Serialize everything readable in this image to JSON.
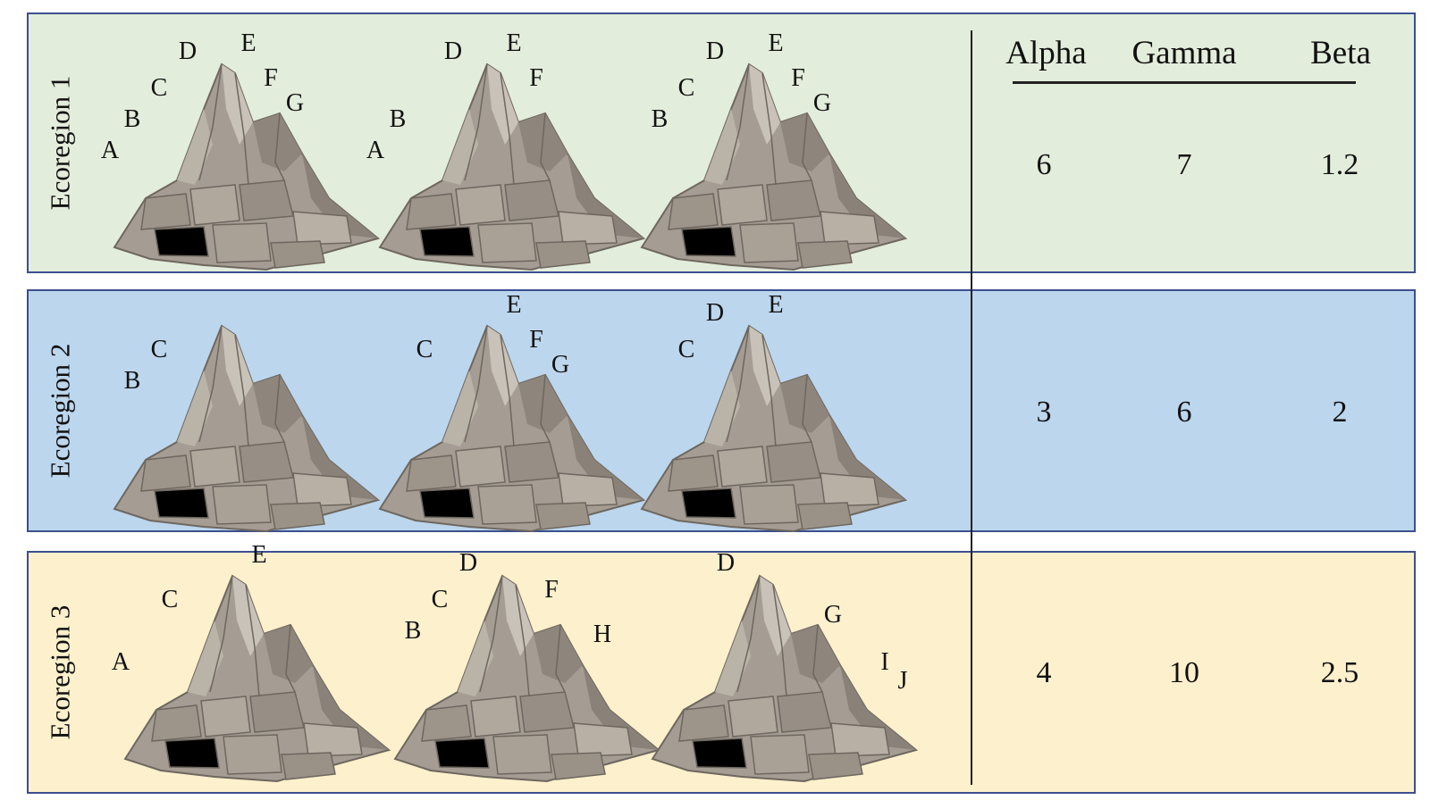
{
  "columns": {
    "alpha": "Alpha",
    "gamma": "Gamma",
    "beta": "Beta"
  },
  "colors": {
    "panel_1": "#e3eddb",
    "panel_2": "#bcd6ee",
    "panel_3": "#fdf0cc",
    "border": "#3b4f8f",
    "rock_dark": "#7b746b",
    "rock": "#a59d93",
    "rock_light": "#c9c2b8"
  },
  "ecoregions": [
    {
      "label": "Ecoregion 1",
      "alpha": "6",
      "gamma": "7",
      "beta": "1.2",
      "mountains": [
        [
          "A",
          "B",
          "C",
          "D",
          "E",
          "F",
          "G"
        ],
        [
          "A",
          "B",
          "D",
          "E",
          "F"
        ],
        [
          "B",
          "C",
          "D",
          "E",
          "F",
          "G"
        ]
      ]
    },
    {
      "label": "Ecoregion 2",
      "alpha": "3",
      "gamma": "6",
      "beta": "2",
      "mountains": [
        [
          "B",
          "C"
        ],
        [
          "C",
          "E",
          "F",
          "G"
        ],
        [
          "C",
          "D",
          "E"
        ]
      ]
    },
    {
      "label": "Ecoregion 3",
      "alpha": "4",
      "gamma": "10",
      "beta": "2.5",
      "mountains": [
        [
          "A",
          "C",
          "E"
        ],
        [
          "B",
          "C",
          "D",
          "F",
          "H"
        ],
        [
          "D",
          "G",
          "I",
          "J"
        ]
      ]
    }
  ]
}
